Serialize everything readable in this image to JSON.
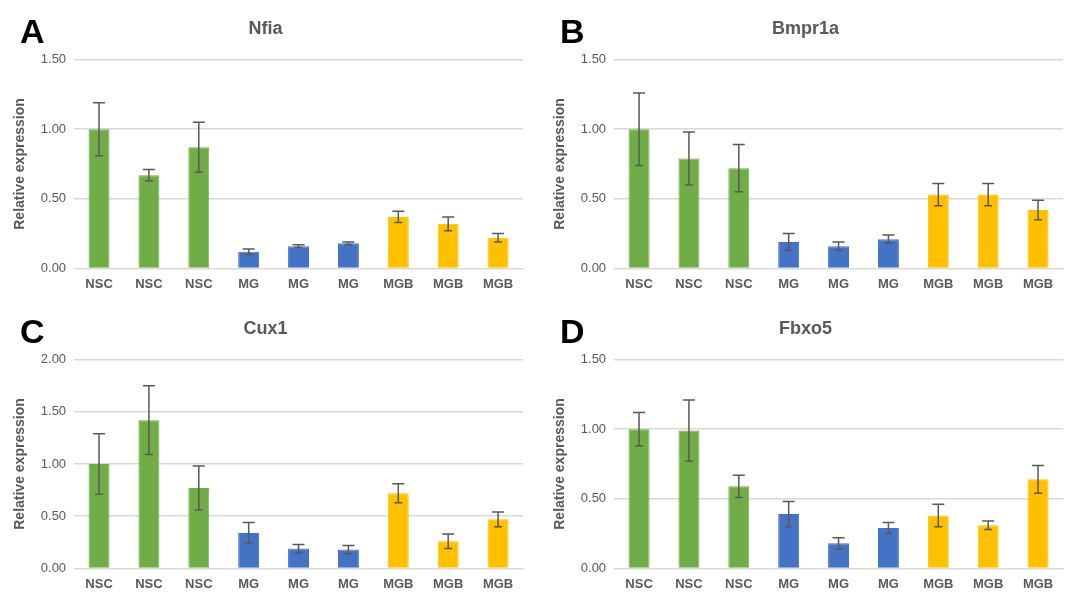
{
  "chart_data": [
    {
      "type": "bar",
      "title": "Nfia",
      "ylabel": "Relative expression",
      "annotations": [
        "A"
      ],
      "categories": [
        "NSC",
        "NSC",
        "NSC",
        "MG",
        "MG",
        "MG",
        "MGB",
        "MGB",
        "MGB"
      ],
      "values": [
        1.0,
        0.67,
        0.87,
        0.12,
        0.16,
        0.18,
        0.37,
        0.32,
        0.22
      ],
      "errors": [
        0.19,
        0.04,
        0.18,
        0.02,
        0.01,
        0.01,
        0.04,
        0.05,
        0.03
      ],
      "colors": [
        "#70ad47",
        "#70ad47",
        "#70ad47",
        "#4472c4",
        "#4472c4",
        "#4472c4",
        "#ffc000",
        "#ffc000",
        "#ffc000"
      ],
      "ylim": [
        0,
        1.5
      ],
      "yticks": [
        {
          "value": 0,
          "label": "0.00"
        },
        {
          "value": 0.5,
          "label": "0.50"
        },
        {
          "value": 1,
          "label": "1.00"
        },
        {
          "value": 1.5,
          "label": "1.50"
        }
      ],
      "grid": "y"
    },
    {
      "type": "bar",
      "title": "Bmpr1a",
      "ylabel": "Relative expression",
      "annotations": [
        "B"
      ],
      "categories": [
        "NSC",
        "NSC",
        "NSC",
        "MG",
        "MG",
        "MG",
        "MGB",
        "MGB",
        "MGB"
      ],
      "values": [
        1.0,
        0.79,
        0.72,
        0.19,
        0.16,
        0.21,
        0.53,
        0.53,
        0.42
      ],
      "errors": [
        0.26,
        0.19,
        0.17,
        0.06,
        0.03,
        0.03,
        0.08,
        0.08,
        0.07
      ],
      "colors": [
        "#70ad47",
        "#70ad47",
        "#70ad47",
        "#4472c4",
        "#4472c4",
        "#4472c4",
        "#ffc000",
        "#ffc000",
        "#ffc000"
      ],
      "ylim": [
        0,
        1.5
      ],
      "yticks": [
        {
          "value": 0,
          "label": "0.00"
        },
        {
          "value": 0.5,
          "label": "0.50"
        },
        {
          "value": 1,
          "label": "1.00"
        },
        {
          "value": 1.5,
          "label": "1.50"
        }
      ],
      "grid": "y"
    },
    {
      "type": "bar",
      "title": "Cux1",
      "ylabel": "Relative expression",
      "annotations": [
        "C"
      ],
      "categories": [
        "NSC",
        "NSC",
        "NSC",
        "MG",
        "MG",
        "MG",
        "MGB",
        "MGB",
        "MGB"
      ],
      "values": [
        1.0,
        1.42,
        0.77,
        0.34,
        0.19,
        0.18,
        0.72,
        0.26,
        0.47
      ],
      "errors": [
        0.29,
        0.33,
        0.21,
        0.1,
        0.04,
        0.04,
        0.09,
        0.07,
        0.07
      ],
      "colors": [
        "#70ad47",
        "#70ad47",
        "#70ad47",
        "#4472c4",
        "#4472c4",
        "#4472c4",
        "#ffc000",
        "#ffc000",
        "#ffc000"
      ],
      "ylim": [
        0,
        2
      ],
      "yticks": [
        {
          "value": 0,
          "label": "0.00"
        },
        {
          "value": 0.5,
          "label": "0.50"
        },
        {
          "value": 1,
          "label": "1.00"
        },
        {
          "value": 1.5,
          "label": "1.50"
        },
        {
          "value": 2,
          "label": "2.00"
        }
      ],
      "grid": "y"
    },
    {
      "type": "bar",
      "title": "Fbxo5",
      "ylabel": "Relative expression",
      "annotations": [
        "D"
      ],
      "categories": [
        "NSC",
        "NSC",
        "NSC",
        "MG",
        "MG",
        "MG",
        "MGB",
        "MGB",
        "MGB"
      ],
      "values": [
        1.0,
        0.99,
        0.59,
        0.39,
        0.18,
        0.29,
        0.38,
        0.31,
        0.64
      ],
      "errors": [
        0.12,
        0.22,
        0.08,
        0.09,
        0.04,
        0.04,
        0.08,
        0.03,
        0.1
      ],
      "colors": [
        "#70ad47",
        "#70ad47",
        "#70ad47",
        "#4472c4",
        "#4472c4",
        "#4472c4",
        "#ffc000",
        "#ffc000",
        "#ffc000"
      ],
      "ylim": [
        0,
        1.5
      ],
      "yticks": [
        {
          "value": 0,
          "label": "0.00"
        },
        {
          "value": 0.5,
          "label": "0.50"
        },
        {
          "value": 1,
          "label": "1.00"
        },
        {
          "value": 1.5,
          "label": "1.50"
        }
      ],
      "grid": "y"
    }
  ]
}
